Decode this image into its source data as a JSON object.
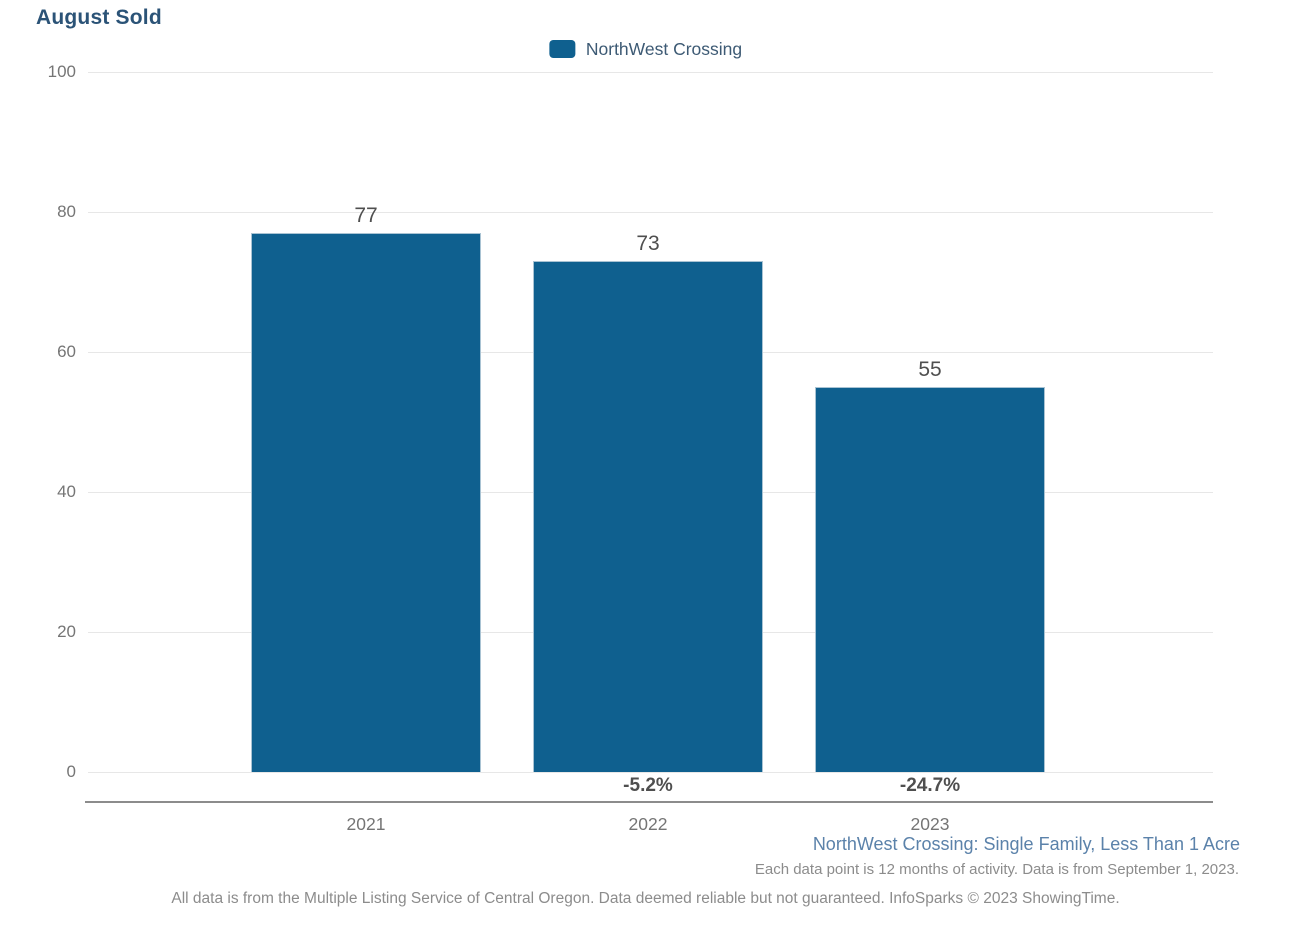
{
  "page": {
    "title": "August Sold",
    "legend": {
      "label": "NorthWest Crossing",
      "swatch_color": "#0f608f"
    },
    "subtitle": "NorthWest Crossing: Single Family, Less Than 1 Acre",
    "note": "Each data point is 12 months of activity. Data is from September 1, 2023.",
    "disclaimer": "All data is from the Multiple Listing Service of Central Oregon. Data deemed reliable but not guaranteed. InfoSparks © 2023 ShowingTime."
  },
  "chart_data": {
    "type": "bar",
    "title": "August Sold",
    "categories": [
      "2021",
      "2022",
      "2023"
    ],
    "series": [
      {
        "name": "NorthWest Crossing",
        "values": [
          77,
          73,
          55
        ]
      }
    ],
    "value_labels": [
      "77",
      "73",
      "55"
    ],
    "pct_change_labels": [
      "",
      "-5.2%",
      "-24.7%"
    ],
    "yticks": [
      0,
      20,
      40,
      60,
      80,
      100
    ],
    "ylim": [
      0,
      100
    ],
    "xlabel": "",
    "ylabel": "",
    "bar_color": "#0f608f",
    "grid": "horizontal",
    "legend_position": "top-center",
    "annotation_colors": {
      "value_label": "#4f4f4f",
      "pct_label": "#4f4f4f",
      "axis_label": "#757575"
    }
  }
}
